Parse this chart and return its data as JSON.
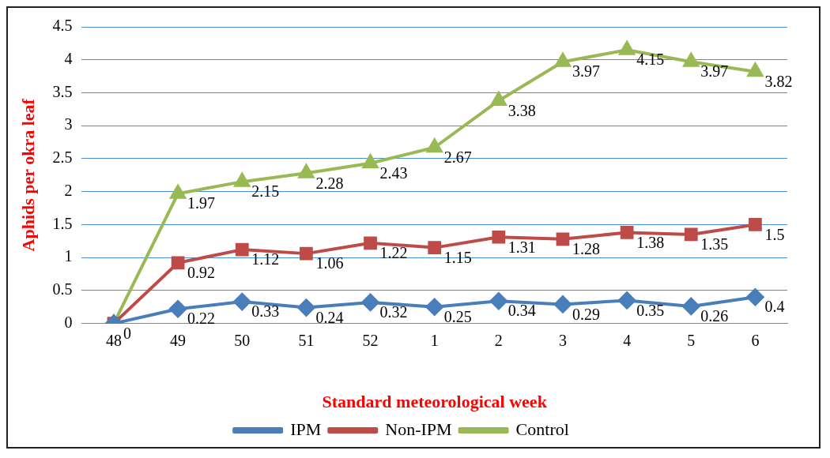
{
  "chart_data": {
    "type": "line",
    "xlabel": "Standard meteorological week",
    "ylabel": "Aphids per okra leaf",
    "categories": [
      "48",
      "49",
      "50",
      "51",
      "52",
      "1",
      "2",
      "3",
      "4",
      "5",
      "6"
    ],
    "ylim": [
      0,
      4.5
    ],
    "yticks": [
      0,
      0.5,
      1,
      1.5,
      2,
      2.5,
      3,
      3.5,
      4,
      4.5
    ],
    "grid": "y",
    "legend": "bottom",
    "line_style": "solid",
    "series": [
      {
        "name": "IPM",
        "color": "#4a7ebb",
        "marker": "diamond",
        "values": [
          0,
          0.22,
          0.33,
          0.24,
          0.32,
          0.25,
          0.34,
          0.29,
          0.35,
          0.26,
          0.4
        ],
        "value_labels": [
          "0",
          "0.22",
          "0.33",
          "0.24",
          "0.32",
          "0.25",
          "0.34",
          "0.29",
          "0.35",
          "0.26",
          "0.4"
        ]
      },
      {
        "name": "Non-IPM",
        "color": "#be4b48",
        "marker": "square",
        "values": [
          0,
          0.92,
          1.12,
          1.06,
          1.22,
          1.15,
          1.31,
          1.28,
          1.38,
          1.35,
          1.5
        ],
        "value_labels": [
          null,
          "0.92",
          "1.12",
          "1.06",
          "1.22",
          "1.15",
          "1.31",
          "1.28",
          "1.38",
          "1.35",
          "1.5"
        ]
      },
      {
        "name": "Control",
        "color": "#98b954",
        "marker": "triangle",
        "values": [
          0,
          1.97,
          2.15,
          2.28,
          2.43,
          2.67,
          3.38,
          3.97,
          4.15,
          3.97,
          3.82
        ],
        "value_labels": [
          null,
          "1.97",
          "2.15",
          "2.28",
          "2.43",
          "2.67",
          "3.38",
          "3.97",
          "4.15",
          "3.97",
          "3.82"
        ]
      }
    ]
  }
}
